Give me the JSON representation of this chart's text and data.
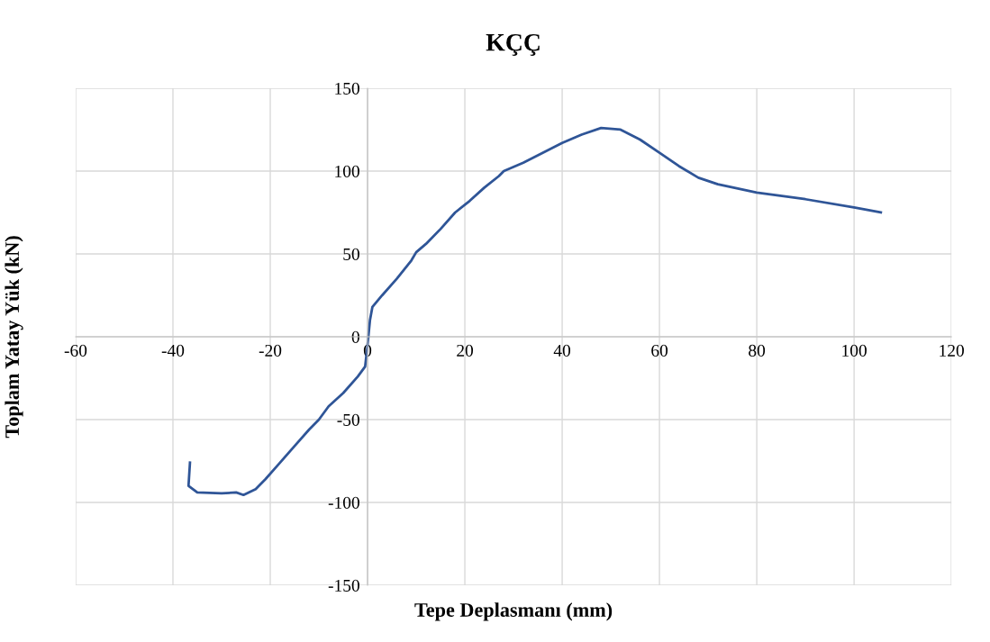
{
  "chart_data": {
    "type": "line",
    "title": "KÇÇ",
    "xlabel": "Tepe Deplasmanı (mm)",
    "ylabel": "Toplam Yatay Yük (kN)",
    "xlim": [
      -60,
      120
    ],
    "xticks": [
      -60,
      -40,
      -20,
      0,
      20,
      40,
      60,
      80,
      100,
      120
    ],
    "ylim": [
      -150,
      150
    ],
    "yticks": [
      -150,
      -100,
      -50,
      0,
      50,
      100,
      150
    ],
    "grid": true,
    "marker": "none",
    "line_style": "solid",
    "series": [
      {
        "color": "#2f5597",
        "x": [
          -36.5,
          -36.8,
          -35,
          -30,
          -27,
          -25.5,
          -23,
          -21,
          -18,
          -15,
          -12,
          -10,
          -8,
          -5,
          -2,
          -0.5,
          0,
          0.5,
          1,
          3,
          6,
          9,
          10,
          12,
          15,
          18,
          21,
          24,
          27,
          28,
          32,
          36,
          40,
          44,
          48,
          52,
          56,
          60,
          64,
          68,
          72,
          80,
          90,
          100,
          105.5
        ],
        "values": [
          -76,
          -90,
          -94,
          -94.5,
          -94,
          -95.5,
          -92,
          -86,
          -76,
          -66,
          -56,
          -50,
          -42,
          -34,
          -24,
          -18,
          -5,
          10,
          18,
          25,
          35,
          46,
          51,
          56,
          65,
          75,
          82,
          90,
          97,
          100,
          105,
          111,
          117,
          122,
          126,
          125,
          119,
          111,
          103,
          96,
          92,
          87,
          83,
          78,
          75
        ]
      }
    ]
  }
}
